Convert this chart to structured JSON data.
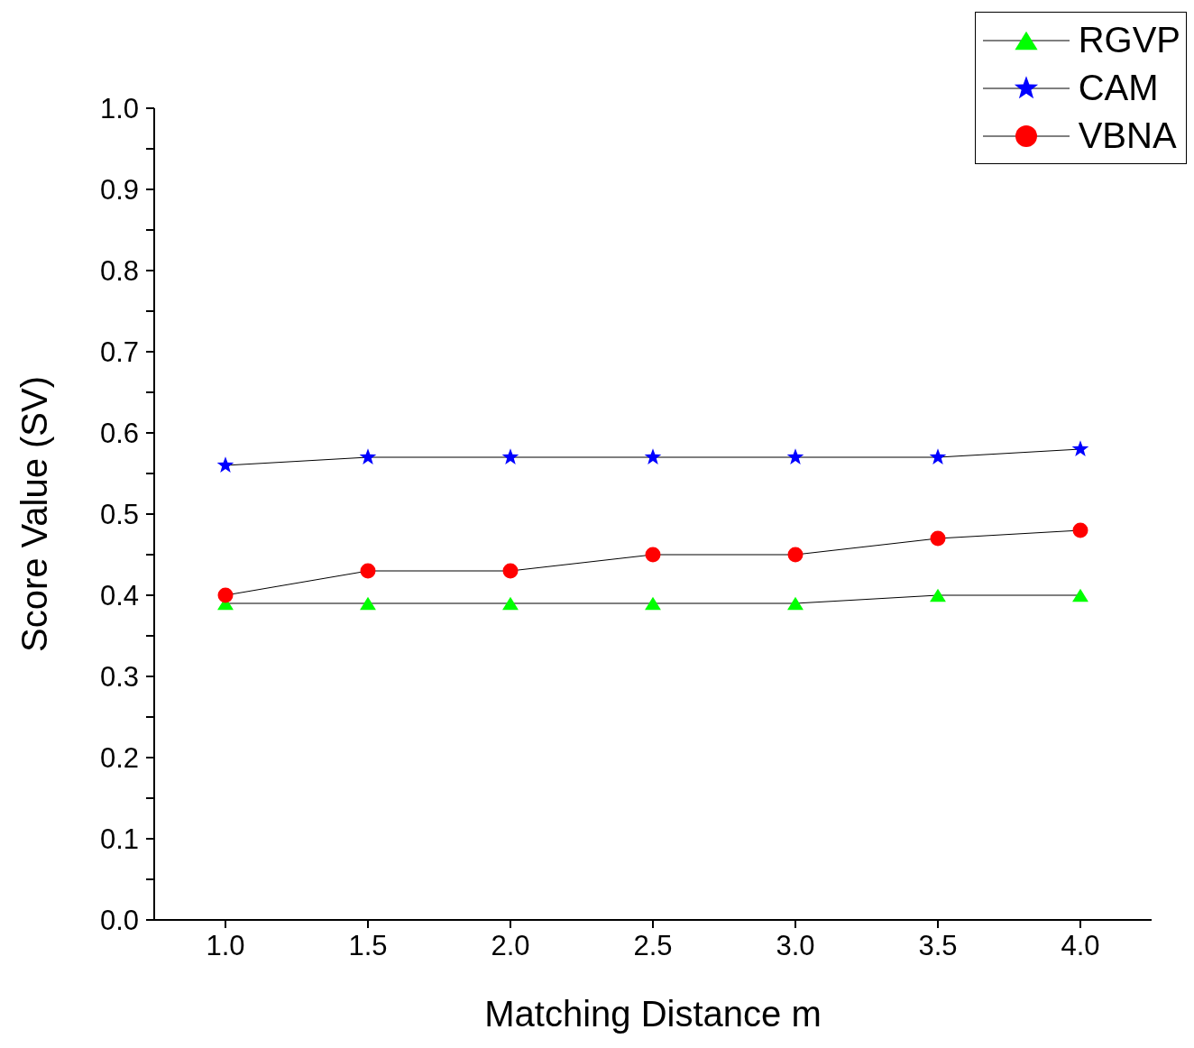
{
  "chart_data": {
    "type": "line",
    "xlabel": "Matching Distance m",
    "ylabel": "Score Value (SV)",
    "x": [
      1.0,
      1.5,
      2.0,
      2.5,
      3.0,
      3.5,
      4.0
    ],
    "series": [
      {
        "name": "RGVP",
        "color": "#00ff00",
        "marker": "triangle",
        "values": [
          0.39,
          0.39,
          0.39,
          0.39,
          0.39,
          0.4,
          0.4
        ]
      },
      {
        "name": "CAM",
        "color": "#0000ff",
        "marker": "star",
        "values": [
          0.56,
          0.57,
          0.57,
          0.57,
          0.57,
          0.57,
          0.58
        ]
      },
      {
        "name": "VBNA",
        "color": "#ff0000",
        "marker": "circle",
        "values": [
          0.4,
          0.43,
          0.43,
          0.45,
          0.45,
          0.47,
          0.48
        ]
      }
    ],
    "xlim": [
      0.75,
      4.25
    ],
    "xticks": [
      {
        "value": 1,
        "label": "1.0"
      },
      {
        "value": 1.5,
        "label": "1.5"
      },
      {
        "value": 2,
        "label": "2.0"
      },
      {
        "value": 2.5,
        "label": "2.5"
      },
      {
        "value": 3,
        "label": "3.0"
      },
      {
        "value": 3.5,
        "label": "3.5"
      },
      {
        "value": 4,
        "label": "4.0"
      }
    ],
    "ylim": [
      0,
      1
    ],
    "yticks": [
      {
        "value": 0,
        "label": "0.0"
      },
      {
        "value": 0.05,
        "label": null
      },
      {
        "value": 0.1,
        "label": "0.1"
      },
      {
        "value": 0.15,
        "label": null
      },
      {
        "value": 0.2,
        "label": "0.2"
      },
      {
        "value": 0.25,
        "label": null
      },
      {
        "value": 0.3,
        "label": "0.3"
      },
      {
        "value": 0.35,
        "label": null
      },
      {
        "value": 0.4,
        "label": "0.4"
      },
      {
        "value": 0.45,
        "label": null
      },
      {
        "value": 0.5,
        "label": "0.5"
      },
      {
        "value": 0.55,
        "label": null
      },
      {
        "value": 0.6,
        "label": "0.6"
      },
      {
        "value": 0.65,
        "label": null
      },
      {
        "value": 0.7,
        "label": "0.7"
      },
      {
        "value": 0.75,
        "label": null
      },
      {
        "value": 0.8,
        "label": "0.8"
      },
      {
        "value": 0.85,
        "label": null
      },
      {
        "value": 0.9,
        "label": "0.9"
      },
      {
        "value": 0.95,
        "label": null
      },
      {
        "value": 1,
        "label": "1.0"
      }
    ],
    "grid": false,
    "legend": "top right",
    "line_style": "solid"
  }
}
